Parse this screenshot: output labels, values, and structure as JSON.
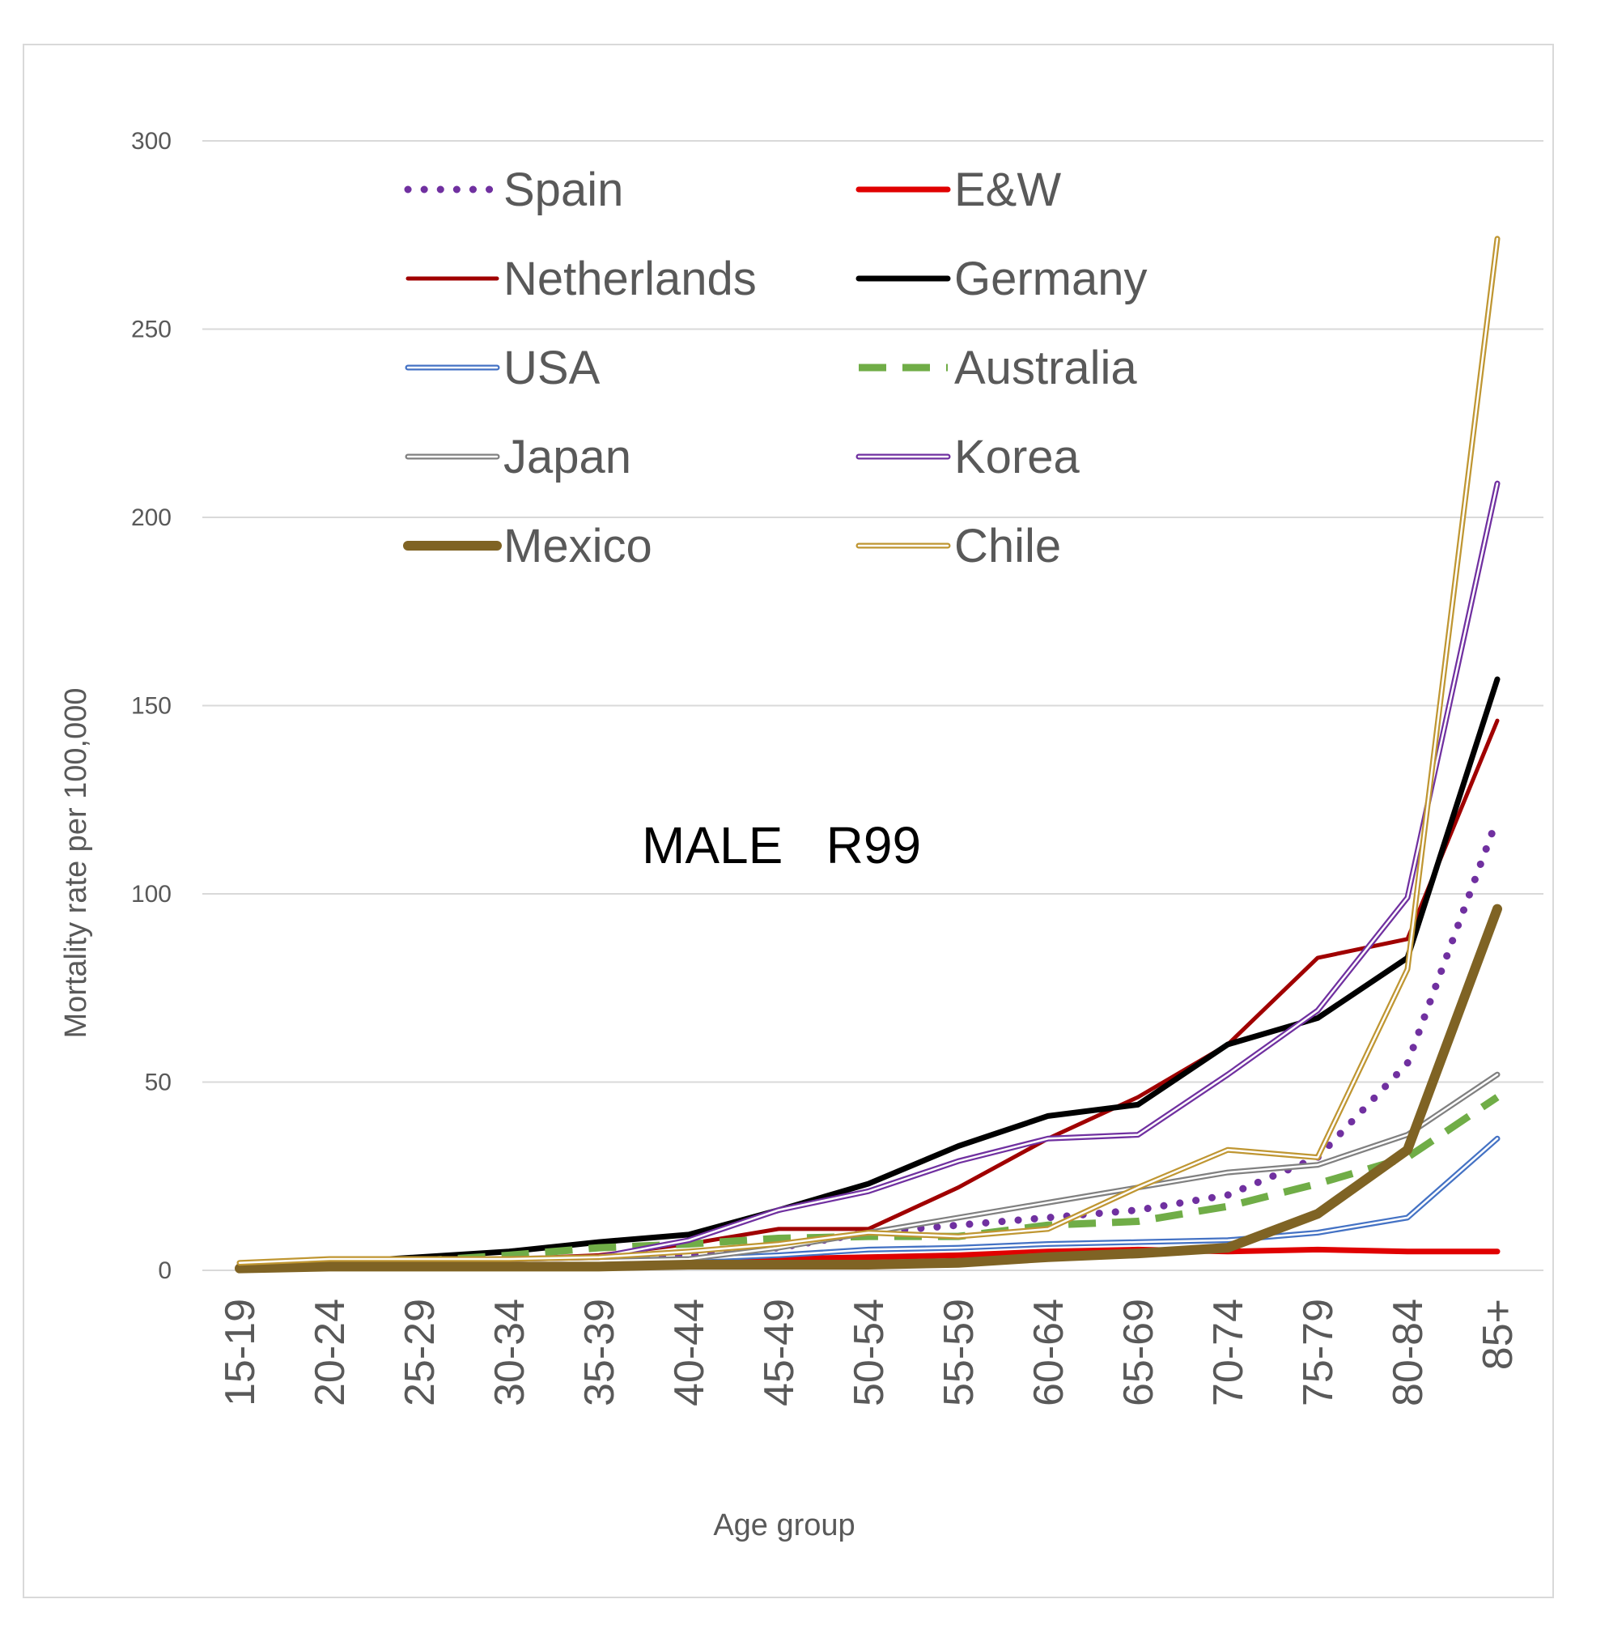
{
  "chart_data": {
    "type": "line",
    "title": "",
    "annotation": "MALE   R99",
    "xlabel": "Age  group",
    "ylabel": "Mortality rate per 100,000",
    "ylim": [
      0,
      300
    ],
    "yticks": [
      "0",
      "50",
      "100",
      "150",
      "200",
      "250",
      "300"
    ],
    "grid": "horizontal",
    "legend_position": "top-left",
    "categories": [
      "15-19",
      "20-24",
      "25-29",
      "30-34",
      "35-39",
      "40-44",
      "45-49",
      "50-54",
      "55-59",
      "60-64",
      "65-69",
      "70-74",
      "75-79",
      "80-84",
      "85+"
    ],
    "series": [
      {
        "name": "Spain",
        "style": "dotted",
        "color": "#7030a0",
        "values": [
          1,
          1.5,
          1.5,
          2,
          3,
          4,
          6,
          10,
          12,
          14,
          16,
          20,
          30,
          55,
          120
        ]
      },
      {
        "name": "E&W",
        "style": "solid-thick",
        "color": "#e00000",
        "values": [
          0.5,
          1,
          1,
          1.5,
          2,
          2.5,
          3,
          3.5,
          4,
          5,
          5.5,
          5,
          5.5,
          5,
          5
        ]
      },
      {
        "name": "Netherlands",
        "style": "solid",
        "color": "#a00000",
        "values": [
          1,
          2,
          2,
          3,
          4,
          7,
          11,
          11,
          22,
          35,
          46,
          60,
          83,
          88,
          146
        ]
      },
      {
        "name": "Germany",
        "style": "solid-thick",
        "color": "#000000",
        "values": [
          1,
          2,
          3.5,
          5,
          7.5,
          9.5,
          16,
          23,
          33,
          41,
          44,
          60,
          67,
          83,
          157
        ]
      },
      {
        "name": "USA",
        "style": "double",
        "color": "#4472c4",
        "values": [
          0.5,
          1,
          1.5,
          2,
          2.5,
          3,
          4,
          5.5,
          6,
          7,
          7.5,
          8,
          10,
          14,
          35
        ]
      },
      {
        "name": "Australia",
        "style": "dashed",
        "color": "#70ad47",
        "values": [
          1,
          2,
          2.5,
          4,
          6,
          7,
          8.5,
          9,
          9,
          12,
          13,
          17,
          23,
          30,
          46
        ]
      },
      {
        "name": "Japan",
        "style": "double",
        "color": "#808080",
        "values": [
          0.5,
          1,
          1,
          2,
          2.5,
          3,
          6,
          10,
          14,
          18,
          22,
          26,
          28,
          36,
          52
        ]
      },
      {
        "name": "Korea",
        "style": "double",
        "color": "#7030a0",
        "values": [
          1,
          2,
          2,
          3,
          3.5,
          8,
          16,
          21,
          29,
          35,
          36,
          52,
          69,
          99,
          209
        ]
      },
      {
        "name": "Mexico",
        "style": "solid-heavy",
        "color": "#7f6324",
        "values": [
          0.5,
          1,
          1,
          1,
          1,
          1.5,
          1.5,
          1.5,
          2,
          3.5,
          4.5,
          6,
          15,
          32,
          96
        ]
      },
      {
        "name": "Chile",
        "style": "double",
        "color": "#bf9632",
        "values": [
          2,
          3,
          3,
          3,
          3.5,
          5,
          7,
          10,
          9,
          11,
          22,
          32,
          30,
          80,
          274
        ]
      }
    ]
  }
}
